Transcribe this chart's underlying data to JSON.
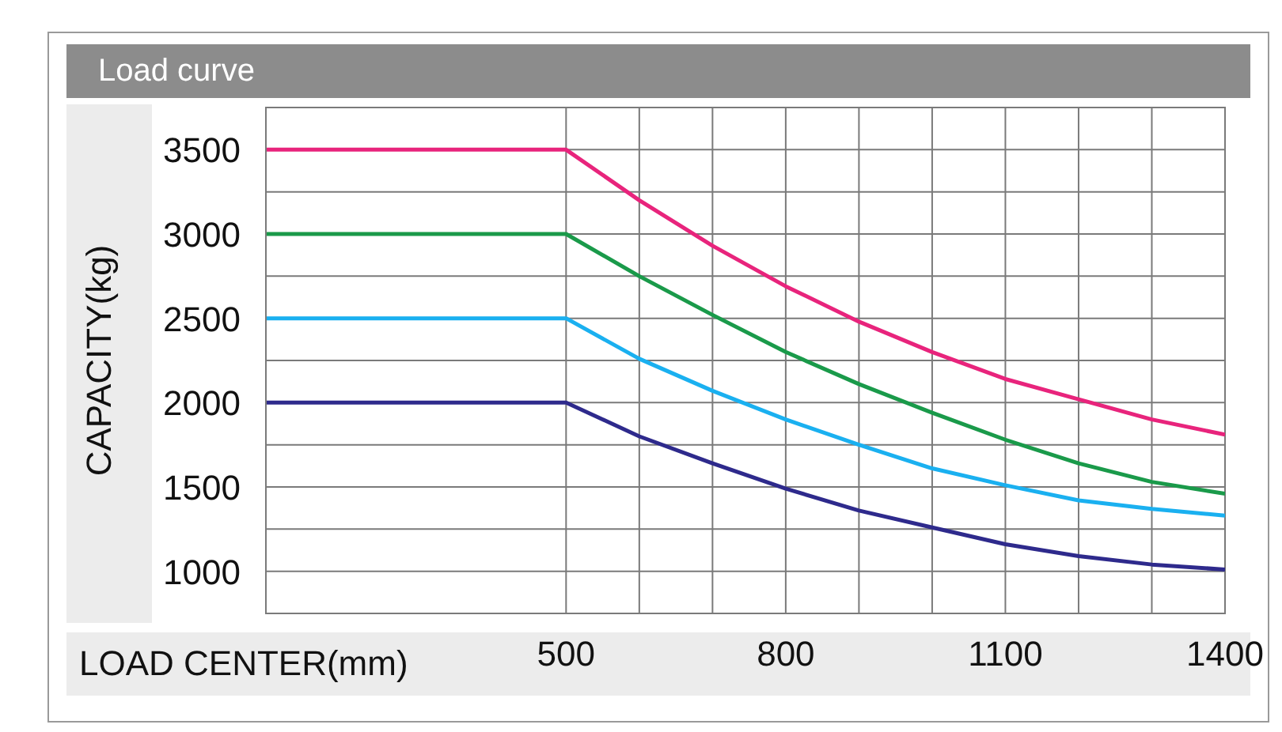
{
  "chart_data": {
    "type": "line",
    "title": "Load curve",
    "xlabel": "LOAD CENTER(mm)",
    "ylabel": "CAPACITY(kg)",
    "x": [
      90,
      500,
      600,
      700,
      800,
      900,
      1000,
      1100,
      1200,
      1300,
      1400
    ],
    "series": [
      {
        "color": "#e8247c",
        "values": [
          3500,
          3500,
          3200,
          2930,
          2690,
          2480,
          2300,
          2140,
          2020,
          1900,
          1810
        ]
      },
      {
        "color": "#1a9a4a",
        "values": [
          3000,
          3000,
          2750,
          2520,
          2300,
          2110,
          1940,
          1780,
          1640,
          1530,
          1460
        ]
      },
      {
        "color": "#1ab0f0",
        "values": [
          2500,
          2500,
          2260,
          2070,
          1900,
          1750,
          1610,
          1510,
          1420,
          1370,
          1330
        ]
      },
      {
        "color": "#2e2a8c",
        "values": [
          2000,
          2000,
          1800,
          1640,
          1490,
          1360,
          1260,
          1160,
          1090,
          1040,
          1010
        ]
      }
    ],
    "xlim": [
      90,
      1400
    ],
    "xticks": [
      500,
      {
        "value": 600,
        "label": null
      },
      {
        "value": 700,
        "label": null
      },
      800,
      {
        "value": 900,
        "label": null
      },
      {
        "value": 1000,
        "label": null
      },
      1100,
      {
        "value": 1200,
        "label": null
      },
      {
        "value": 1300,
        "label": null
      },
      1400
    ],
    "ylim": [
      750,
      3750
    ],
    "yticks": [
      1000,
      {
        "value": 1250,
        "label": null
      },
      1500,
      {
        "value": 1750,
        "label": null
      },
      2000,
      {
        "value": 2250,
        "label": null
      },
      2500,
      {
        "value": 2750,
        "label": null
      },
      3000,
      {
        "value": 3250,
        "label": null
      },
      3500
    ],
    "grid": true,
    "marker": "none",
    "line_style": "solid"
  }
}
